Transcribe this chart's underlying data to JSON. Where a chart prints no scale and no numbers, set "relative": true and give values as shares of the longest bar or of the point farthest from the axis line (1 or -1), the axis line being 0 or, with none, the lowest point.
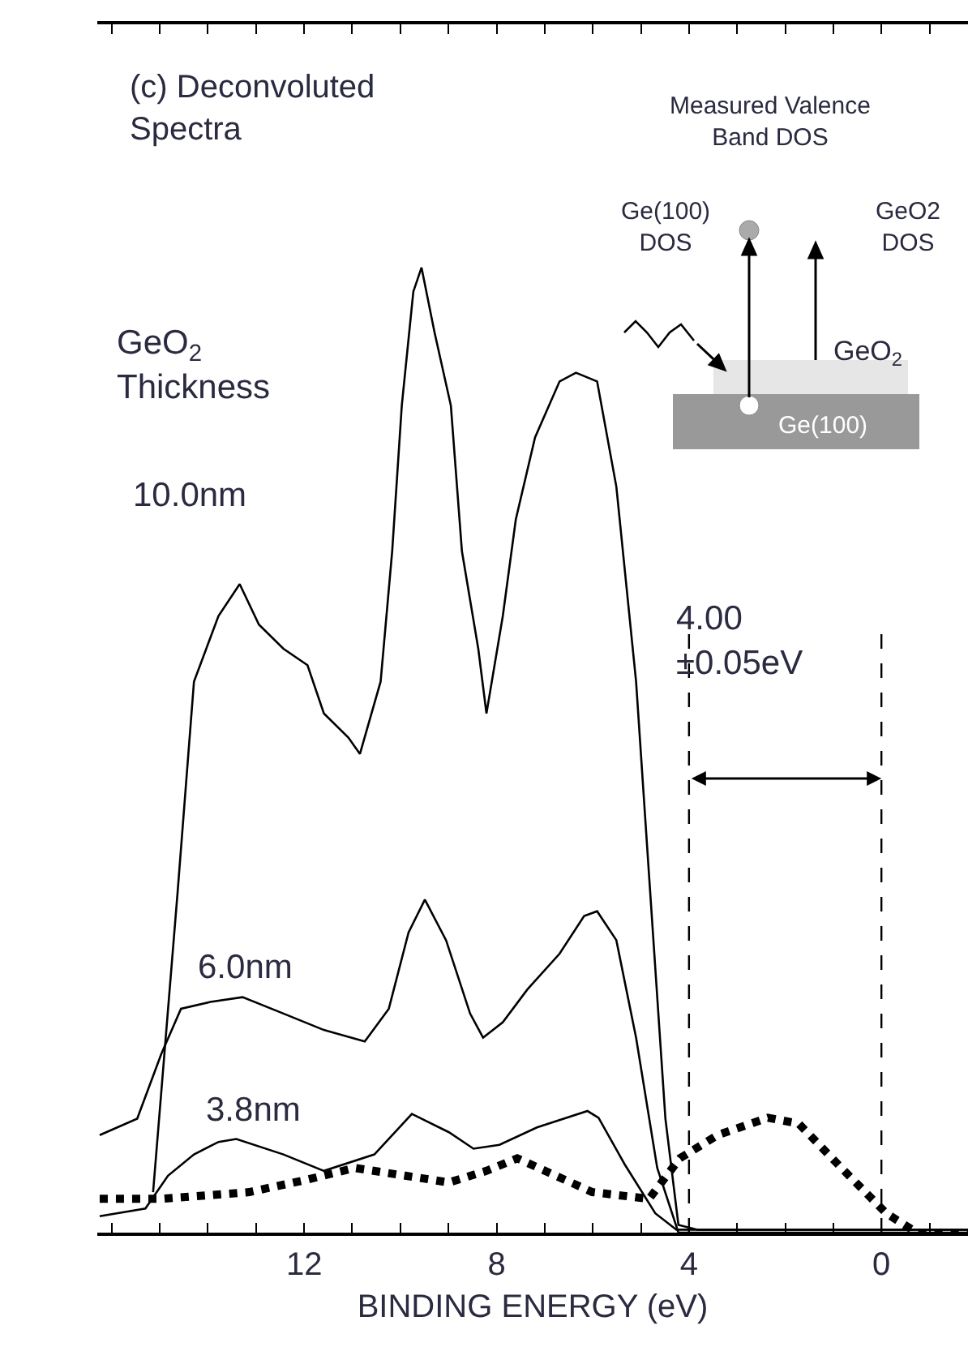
{
  "chart_data": {
    "type": "line",
    "relative": true,
    "xlabel": "BINDING ENERGY (eV)",
    "xlim": [
      16.3,
      -1.8
    ],
    "xticks": [
      {
        "value": 16,
        "label": null
      },
      {
        "value": 15,
        "label": null
      },
      {
        "value": 14,
        "label": null
      },
      {
        "value": 13,
        "label": null
      },
      12,
      {
        "value": 11,
        "label": null
      },
      {
        "value": 10,
        "label": null
      },
      {
        "value": 9,
        "label": null
      },
      8,
      {
        "value": 7,
        "label": null
      },
      {
        "value": 6,
        "label": null
      },
      {
        "value": 5,
        "label": null
      },
      4,
      {
        "value": 3,
        "label": null
      },
      {
        "value": 2,
        "label": null
      },
      {
        "value": 1,
        "label": null
      },
      0,
      {
        "value": -1,
        "label": null
      }
    ],
    "legend": false,
    "grid": false,
    "tick_labels": "x",
    "legend_title": "GeO$_{2}$\nThickness",
    "series": [
      {
        "name": "10.0nm",
        "color": "#000000",
        "line_style": "solid",
        "x": [
          15.14,
          14.63,
          14.29,
          13.78,
          13.34,
          12.94,
          12.43,
          11.93,
          11.59,
          11.08,
          10.84,
          10.41,
          10.17,
          9.97,
          9.73,
          9.56,
          9.29,
          8.95,
          8.72,
          8.38,
          8.21,
          7.87,
          7.6,
          7.2,
          6.69,
          6.35,
          5.91,
          5.51,
          5.1,
          4.83,
          4.49,
          4.22,
          3.82,
          -1.8
        ],
        "values": [
          0.042,
          0.353,
          0.571,
          0.639,
          0.672,
          0.63,
          0.605,
          0.588,
          0.538,
          0.513,
          0.496,
          0.571,
          0.706,
          0.857,
          0.975,
          1.0,
          0.933,
          0.857,
          0.706,
          0.605,
          0.538,
          0.639,
          0.739,
          0.824,
          0.882,
          0.891,
          0.882,
          0.773,
          0.571,
          0.37,
          0.118,
          0.008,
          0.003,
          0.003
        ]
      },
      {
        "name": "6.0nm",
        "color": "#000000",
        "line_style": "solid",
        "x": [
          16.25,
          15.47,
          14.97,
          14.56,
          13.95,
          13.28,
          12.43,
          11.59,
          10.74,
          10.24,
          9.83,
          9.49,
          9.05,
          8.55,
          8.28,
          7.87,
          7.36,
          6.69,
          6.18,
          5.91,
          5.51,
          5.1,
          4.66,
          4.22,
          3.82,
          -1.8
        ],
        "values": [
          0.101,
          0.118,
          0.185,
          0.232,
          0.239,
          0.244,
          0.227,
          0.21,
          0.198,
          0.232,
          0.311,
          0.345,
          0.303,
          0.227,
          0.202,
          0.218,
          0.252,
          0.289,
          0.328,
          0.333,
          0.303,
          0.202,
          0.067,
          0.0,
          0.0,
          0.0
        ]
      },
      {
        "name": "3.8nm",
        "color": "#000000",
        "line_style": "solid",
        "x": [
          16.25,
          15.3,
          14.83,
          14.29,
          13.78,
          13.41,
          12.43,
          11.59,
          10.54,
          9.76,
          8.99,
          8.48,
          7.94,
          7.16,
          6.11,
          5.88,
          5.34,
          4.7,
          4.26,
          -1.8
        ],
        "values": [
          0.017,
          0.025,
          0.059,
          0.081,
          0.094,
          0.097,
          0.081,
          0.064,
          0.081,
          0.123,
          0.104,
          0.087,
          0.091,
          0.109,
          0.126,
          0.119,
          0.071,
          0.02,
          0.003,
          0.003
        ]
      },
      {
        "color": "#000000",
        "line_style": "dotted",
        "x": [
          16.25,
          14.97,
          13.14,
          11.93,
          10.95,
          9.9,
          8.99,
          8.21,
          7.57,
          6.86,
          6.01,
          4.83,
          4.19,
          3.41,
          2.36,
          1.72,
          0.81,
          -0.1,
          -0.74,
          -1.8
        ],
        "values": [
          0.035,
          0.035,
          0.042,
          0.055,
          0.067,
          0.059,
          0.052,
          0.064,
          0.077,
          0.061,
          0.042,
          0.035,
          0.077,
          0.101,
          0.119,
          0.113,
          0.066,
          0.02,
          0.0,
          0.0
        ]
      }
    ],
    "ref_lines": [
      {
        "axis": "x",
        "value": 4,
        "line_style": "dashed"
      },
      {
        "axis": "x",
        "value": 0,
        "line_style": "dashed"
      }
    ],
    "annotations": [
      "(c) Deconvoluted\nSpectra",
      "Measured Valence\nBand DOS",
      "Ge(100)\nDOS",
      "GeO2\nDOS",
      "GeO$_{2}$",
      "Ge(100)",
      "4.00\n±0.05eV"
    ]
  }
}
